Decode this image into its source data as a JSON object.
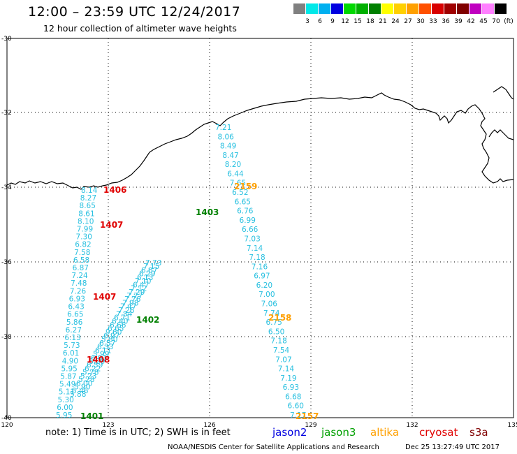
{
  "header": {
    "title": "12:00 – 23:59 UTC 12/24/2017",
    "subtitle": "12 hour collection of altimeter wave heights"
  },
  "colorbar": {
    "colors": [
      "#808080",
      "#00e8e8",
      "#00b0f0",
      "#0000e0",
      "#00d800",
      "#00b000",
      "#008000",
      "#ffff00",
      "#ffd000",
      "#ffa000",
      "#ff5000",
      "#d80000",
      "#a00000",
      "#800000",
      "#c000c0",
      "#ff80ff",
      "#000000"
    ],
    "labels": [
      "3",
      "6",
      "9",
      "12",
      "15",
      "18",
      "21",
      "24",
      "27",
      "30",
      "33",
      "36",
      "39",
      "42",
      "45",
      "70",
      "(ft)"
    ]
  },
  "axes": {
    "lat_labels": [
      "-30",
      "-32",
      "-34",
      "-36",
      "-38",
      "-40"
    ],
    "lon_labels": [
      "120",
      "123",
      "126",
      "129",
      "132",
      "135"
    ]
  },
  "map": {
    "track_color": "#29c0e0",
    "track1_values": [
      "8.14",
      "8.27",
      "8.65",
      "8.61",
      "8.10",
      "7.99",
      "7.30",
      "6.82",
      "7.58",
      "6.58",
      "6.87",
      "7.24",
      "7.48",
      "7.26",
      "6.93",
      "6.43",
      "6.65",
      "5.86",
      "6.27",
      "6.13",
      "5.73",
      "6.01",
      "4.90",
      "5.95",
      "5.87",
      "5.49",
      "5.11",
      "5.30",
      "6.00",
      "5.95"
    ],
    "track2_values": [
      "7.73",
      "7.15",
      "6.67",
      "6.29",
      "6.13",
      "7.10",
      "6.47",
      "7.12",
      "7.29",
      "7.77",
      "7.76",
      "7.98",
      "7.47",
      "7.26",
      "7.34",
      "6.71",
      "6.40",
      "6.66",
      "6.65",
      "9.60",
      "6.97",
      "5.80",
      "6.57",
      "6.33",
      "6.11",
      "5.99",
      "6.01",
      "6.29",
      "6.59",
      "6.22",
      "5.78",
      "5.23",
      "5.28",
      "6.00",
      "5.90",
      "5.46",
      "5.88"
    ],
    "track3_values": [
      "7.21",
      "8.06",
      "8.49",
      "8.47",
      "8.20",
      "6.44",
      "7.65",
      "6.52",
      "6.65",
      "6.76",
      "6.99",
      "6.66",
      "7.03",
      "7.14",
      "7.18",
      "7.16",
      "6.97",
      "6.20",
      "7.00",
      "7.06",
      "7.74",
      "6.75",
      "6.50",
      "7.18",
      "7.54",
      "7.07",
      "7.14",
      "7.19",
      "6.93",
      "6.68",
      "6.60",
      "7.17"
    ],
    "pass_labels": [
      {
        "text": "1406",
        "color": "#e00000"
      },
      {
        "text": "1407",
        "color": "#e00000"
      },
      {
        "text": "1407",
        "color": "#e00000"
      },
      {
        "text": "1408",
        "color": "#e00000"
      },
      {
        "text": "1403",
        "color": "#008000"
      },
      {
        "text": "1402",
        "color": "#008000"
      },
      {
        "text": "1401",
        "color": "#008000"
      },
      {
        "text": "2159",
        "color": "#ffa000"
      },
      {
        "text": "2158",
        "color": "#ffa000"
      },
      {
        "text": "2157",
        "color": "#ffa000"
      }
    ]
  },
  "legend": {
    "note": "note: 1) Time is in UTC; 2) SWH is in feet",
    "satellites": [
      {
        "name": "jason2",
        "color": "#0000e0"
      },
      {
        "name": "jason3",
        "color": "#00a000"
      },
      {
        "name": "altika",
        "color": "#ffa000"
      },
      {
        "name": "cryosat",
        "color": "#e00000"
      },
      {
        "name": "s3a",
        "color": "#800000"
      }
    ]
  },
  "footer": {
    "credit": "NOAA/NESDIS Center for Satellite Applications and Research",
    "timestamp": "Dec 25 13:27:49 UTC 2017"
  }
}
